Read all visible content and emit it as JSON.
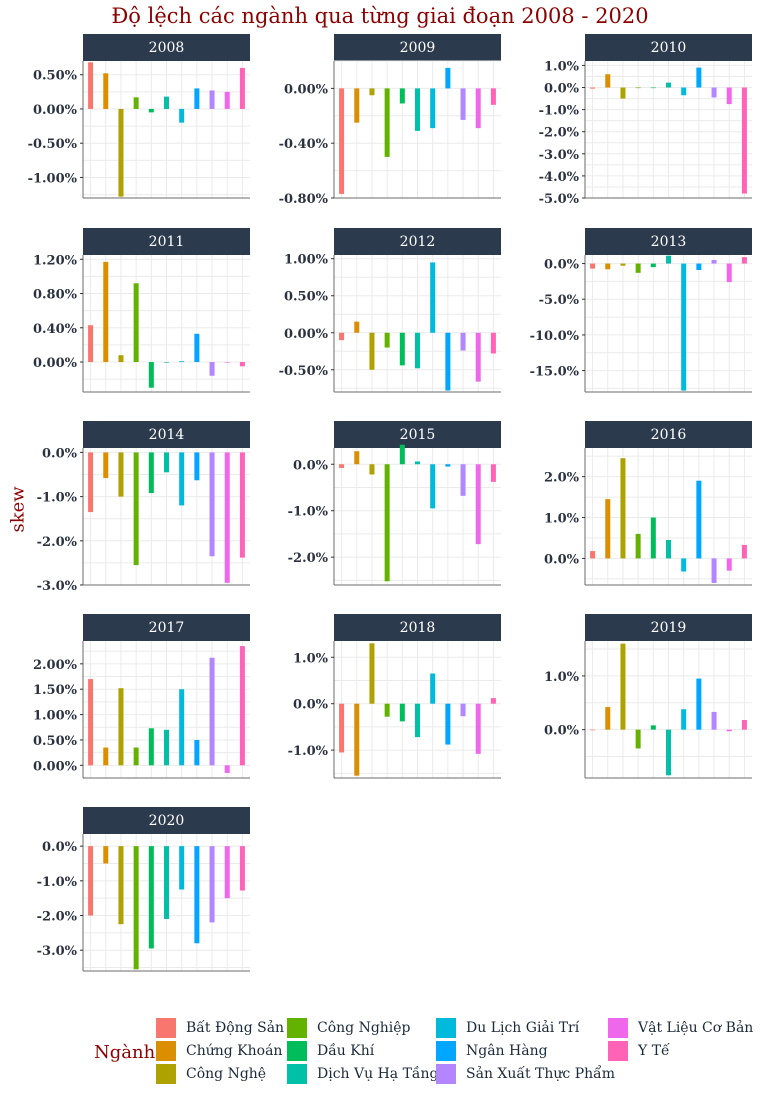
{
  "chart_data": {
    "type": "bar",
    "title": "Độ lệch các ngành qua từng giai đoạn 2008 - 2020",
    "ylabel": "skew",
    "legend_title": "Ngành",
    "categories": [
      "Bất Động Sản",
      "Chứng Khoán",
      "Công Nghệ",
      "Công Nghiệp",
      "Dầu Khí",
      "Dịch Vụ Hạ Tầng",
      "Du Lịch Giải Trí",
      "Ngân Hàng",
      "Sản Xuất Thực Phẩm",
      "Vật Liệu Cơ Bản",
      "Y Tế"
    ],
    "colors": [
      "#F8766D",
      "#DB8E00",
      "#AEA200",
      "#64B200",
      "#00BD5C",
      "#00C1A7",
      "#00BADE",
      "#00A6FF",
      "#B385FF",
      "#EF67EB",
      "#FF63B6"
    ],
    "panels": [
      {
        "year": "2008",
        "ylim": [
          -1.3,
          0.7
        ],
        "ticks": [
          0.5,
          0,
          -0.5,
          -1.0
        ],
        "tick_labels": [
          "0.50%",
          "0.00%",
          "-0.50%",
          "-1.00%"
        ],
        "values": [
          0.68,
          0.52,
          -1.28,
          0.17,
          -0.05,
          0.18,
          -0.2,
          0.3,
          0.27,
          0.25,
          0.6
        ]
      },
      {
        "year": "2009",
        "ylim": [
          -0.8,
          0.2
        ],
        "ticks": [
          0,
          -0.4,
          -0.8
        ],
        "tick_labels": [
          "0.00%",
          "-0.40%",
          "-0.80%"
        ],
        "values": [
          -0.77,
          -0.25,
          -0.05,
          -0.5,
          -0.11,
          -0.31,
          -0.29,
          0.15,
          -0.23,
          -0.29,
          -0.12
        ]
      },
      {
        "year": "2010",
        "ylim": [
          -5.0,
          1.2
        ],
        "ticks": [
          1,
          0,
          -1,
          -2,
          -3,
          -4,
          -5
        ],
        "tick_labels": [
          "1.0%",
          "0.0%",
          "-1.0%",
          "-2.0%",
          "-3.0%",
          "-4.0%",
          "-5.0%"
        ],
        "values": [
          -0.05,
          0.6,
          -0.5,
          0.0,
          0.0,
          0.22,
          -0.35,
          0.9,
          -0.45,
          -0.75,
          -4.8
        ]
      },
      {
        "year": "2011",
        "ylim": [
          -0.35,
          1.25
        ],
        "ticks": [
          1.2,
          0.8,
          0.4,
          0
        ],
        "tick_labels": [
          "1.20%",
          "0.80%",
          "0.40%",
          "0.00%"
        ],
        "values": [
          0.43,
          1.17,
          0.08,
          0.92,
          -0.3,
          0.0,
          0.01,
          0.33,
          -0.16,
          0.0,
          -0.05
        ]
      },
      {
        "year": "2012",
        "ylim": [
          -0.8,
          1.05
        ],
        "ticks": [
          1.0,
          0.5,
          0,
          -0.5
        ],
        "tick_labels": [
          "1.00%",
          "0.50%",
          "0.00%",
          "-0.50%"
        ],
        "values": [
          -0.1,
          0.15,
          -0.5,
          -0.2,
          -0.44,
          -0.48,
          0.95,
          -0.78,
          -0.24,
          -0.66,
          -0.28
        ]
      },
      {
        "year": "2013",
        "ylim": [
          -18.0,
          1.2
        ],
        "ticks": [
          0,
          -5,
          -10,
          -15
        ],
        "tick_labels": [
          "0.0%",
          "-5.0%",
          "-10.0%",
          "-15.0%"
        ],
        "values": [
          -0.7,
          -0.8,
          -0.3,
          -1.3,
          -0.5,
          1.1,
          -17.8,
          -0.9,
          0.5,
          -2.6,
          0.9
        ]
      },
      {
        "year": "2014",
        "ylim": [
          -3.0,
          0.1
        ],
        "ticks": [
          0,
          -1,
          -2,
          -3
        ],
        "tick_labels": [
          "0.0%",
          "-1.0%",
          "-2.0%",
          "-3.0%"
        ],
        "values": [
          -1.35,
          -0.58,
          -1.0,
          -2.55,
          -0.92,
          -0.45,
          -1.2,
          -0.63,
          -2.35,
          -2.95,
          -2.38
        ]
      },
      {
        "year": "2015",
        "ylim": [
          -2.6,
          0.35
        ],
        "ticks": [
          0,
          -1,
          -2
        ],
        "tick_labels": [
          "0.0%",
          "-1.0%",
          "-2.0%"
        ],
        "values": [
          -0.08,
          0.28,
          -0.22,
          -2.52,
          0.42,
          0.06,
          -0.95,
          -0.05,
          -0.68,
          -1.72,
          -0.38
        ]
      },
      {
        "year": "2016",
        "ylim": [
          -0.65,
          2.7
        ],
        "ticks": [
          2,
          1,
          0
        ],
        "tick_labels": [
          "2.0%",
          "1.0%",
          "0.0%"
        ],
        "values": [
          0.18,
          1.45,
          2.45,
          0.6,
          1.0,
          0.45,
          -0.32,
          1.9,
          -0.6,
          -0.3,
          0.33
        ]
      },
      {
        "year": "2017",
        "ylim": [
          -0.25,
          2.45
        ],
        "ticks": [
          2.0,
          1.5,
          1.0,
          0.5,
          0
        ],
        "tick_labels": [
          "2.00%",
          "1.50%",
          "1.00%",
          "0.50%",
          "0.00%"
        ],
        "values": [
          1.7,
          0.35,
          1.52,
          0.35,
          0.73,
          0.7,
          1.5,
          0.5,
          2.12,
          -0.15,
          2.35
        ]
      },
      {
        "year": "2018",
        "ylim": [
          -1.6,
          1.35
        ],
        "ticks": [
          1,
          0,
          -1
        ],
        "tick_labels": [
          "1.0%",
          "0.0%",
          "-1.0%"
        ],
        "values": [
          -1.05,
          -1.55,
          1.3,
          -0.28,
          -0.38,
          -0.72,
          0.65,
          -0.88,
          -0.27,
          -1.08,
          0.12
        ]
      },
      {
        "year": "2019",
        "ylim": [
          -0.9,
          1.65
        ],
        "ticks": [
          1,
          0
        ],
        "tick_labels": [
          "1.0%",
          "0.0%"
        ],
        "values": [
          0.0,
          0.42,
          1.6,
          -0.35,
          0.08,
          -0.85,
          0.38,
          0.95,
          0.33,
          -0.03,
          0.18
        ]
      },
      {
        "year": "2020",
        "ylim": [
          -3.6,
          0.35
        ],
        "ticks": [
          0,
          -1,
          -2,
          -3
        ],
        "tick_labels": [
          "0.0%",
          "-1.0%",
          "-2.0%",
          "-3.0%"
        ],
        "values": [
          -2.0,
          -0.5,
          -2.25,
          -3.55,
          -2.95,
          -2.1,
          -1.25,
          -2.8,
          -2.2,
          -1.5,
          -1.28
        ]
      }
    ]
  }
}
